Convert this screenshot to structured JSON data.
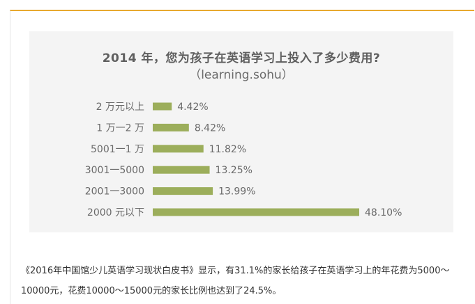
{
  "chart_data": {
    "type": "bar",
    "orientation": "horizontal",
    "title": "2014 年，您为孩子在英语学习上投入了多少费用?",
    "subtitle": "（learning.sohu）",
    "categories": [
      "2 万元以上",
      "1 万一2 万",
      "5001一1 万",
      "3001一5000",
      "2001一3000",
      "2000 元以下"
    ],
    "values": [
      4.42,
      8.42,
      11.82,
      13.25,
      13.99,
      48.1
    ],
    "value_labels": [
      "4.42%",
      "8.42%",
      "11.82%",
      "13.25%",
      "13.99%",
      "48.10%"
    ],
    "unit": "%",
    "xlim": [
      0,
      48.1
    ],
    "bar_color": "#9cae5b",
    "grid": false,
    "legend": "none"
  },
  "caption": {
    "text": "《2016年中国馆少儿英语学习现状白皮书》显示，有31.1%的家长给孩子在英语学习上的年花费为5000～10000元，花费10000～15000元的家长比例也达到了24.5%。"
  },
  "colors": {
    "accent_border": "#e8a92f",
    "chart_background": "#f4f4f4",
    "text": "#333333"
  }
}
